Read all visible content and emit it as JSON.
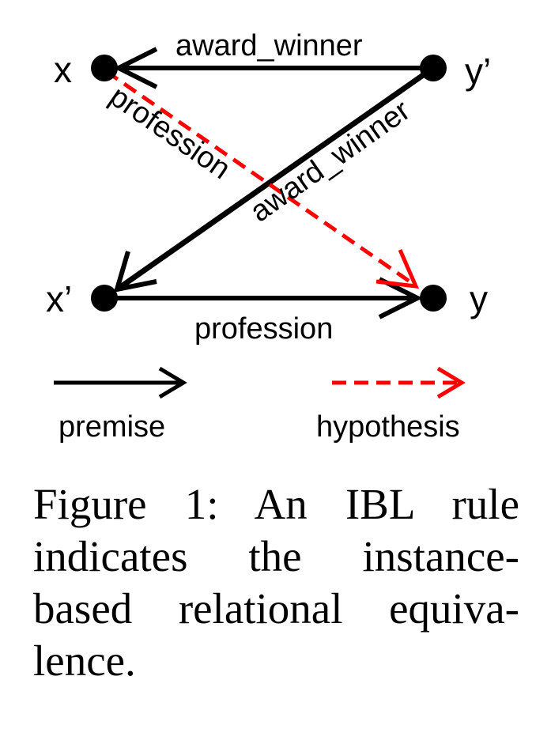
{
  "nodes": {
    "x": "x",
    "y_prime": "y’",
    "x_prime": "x’",
    "y": "y"
  },
  "edges": {
    "top": "award_winner",
    "diagonal_solid": "award_winner",
    "diagonal_dashed": "profession",
    "bottom": "profession"
  },
  "legend": {
    "premise": "premise",
    "hypothesis": "hypothesis"
  },
  "colors": {
    "premise": "#000000",
    "hypothesis": "#ff0000"
  },
  "caption": {
    "lines": [
      "Figure 1: An IBL rule",
      "indicates the instance-",
      "based relational equiva-",
      "lence."
    ]
  }
}
